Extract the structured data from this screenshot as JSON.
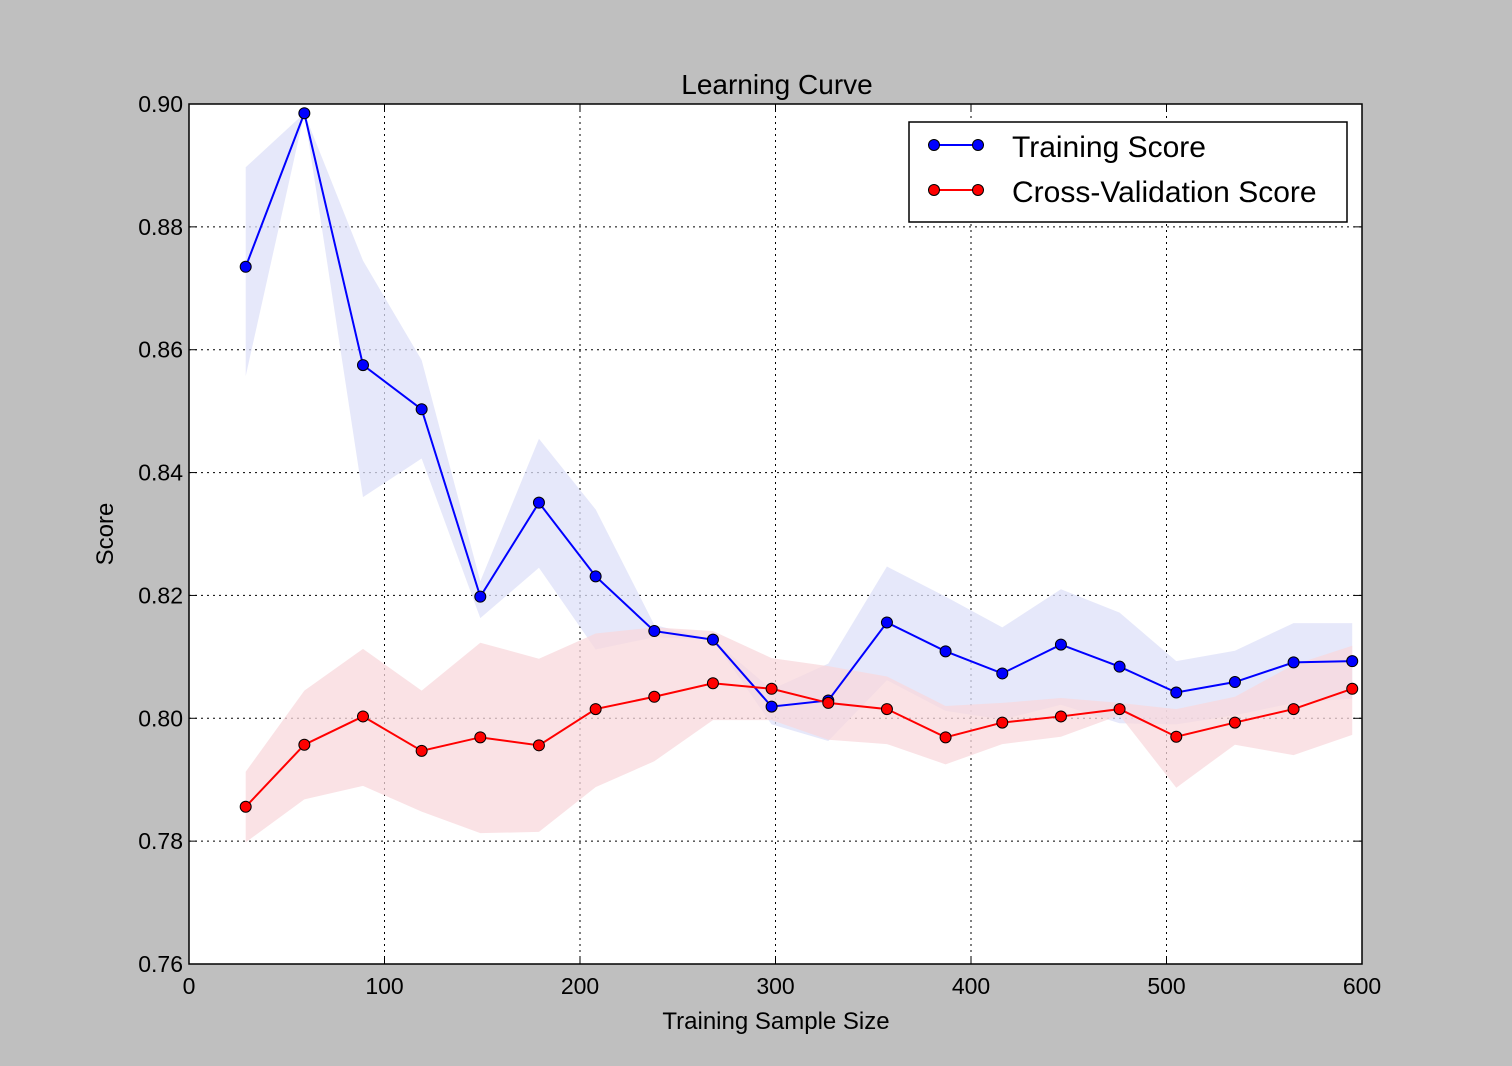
{
  "figure": {
    "background": "#bfbfbf"
  },
  "chart_data": {
    "type": "line",
    "title": "Learning Curve",
    "xlabel": "Training Sample Size",
    "ylabel": "Score",
    "xlim": [
      0,
      600
    ],
    "ylim": [
      0.76,
      0.9
    ],
    "xticks": [
      0,
      100,
      200,
      300,
      400,
      500,
      600
    ],
    "xtick_labels": [
      "0",
      "100",
      "200",
      "300",
      "400",
      "500",
      "600"
    ],
    "yticks": [
      0.76,
      0.78,
      0.8,
      0.82,
      0.84,
      0.86,
      0.88,
      0.9
    ],
    "ytick_labels": [
      "0.76",
      "0.78",
      "0.80",
      "0.82",
      "0.84",
      "0.86",
      "0.88",
      "0.90"
    ],
    "grid": true,
    "legend_position": "top-right",
    "x": [
      29,
      59,
      89,
      119,
      149,
      179,
      208,
      238,
      268,
      298,
      327,
      357,
      387,
      416,
      446,
      476,
      505,
      535,
      565,
      595
    ],
    "series": [
      {
        "name": "Training Score",
        "color": "#0000ff",
        "band_color": "#dde0f8",
        "values": [
          0.8735,
          0.8985,
          0.8575,
          0.8503,
          0.8198,
          0.8351,
          0.8231,
          0.8142,
          0.8128,
          0.8019,
          0.8029,
          0.8156,
          0.8109,
          0.8073,
          0.812,
          0.8084,
          0.8042,
          0.8059,
          0.8091,
          0.8093
        ],
        "band_upper": [
          0.8897,
          0.8985,
          0.8745,
          0.8583,
          0.8223,
          0.8455,
          0.834,
          0.8152,
          0.8128,
          0.8047,
          0.8089,
          0.8247,
          0.8198,
          0.8148,
          0.821,
          0.8172,
          0.8093,
          0.811,
          0.8155,
          0.8155
        ],
        "band_lower": [
          0.8557,
          0.8985,
          0.836,
          0.8423,
          0.8163,
          0.8245,
          0.8112,
          0.8132,
          0.8128,
          0.799,
          0.7963,
          0.8062,
          0.8012,
          0.7998,
          0.8022,
          0.7992,
          0.799,
          0.8005,
          0.8025,
          0.8032
        ]
      },
      {
        "name": "Cross-Validation Score",
        "color": "#ff0000",
        "band_color": "#f8d8dc",
        "values": [
          0.7856,
          0.7957,
          0.8003,
          0.7947,
          0.7969,
          0.7956,
          0.8015,
          0.8035,
          0.8057,
          0.8048,
          0.8025,
          0.8015,
          0.7969,
          0.7993,
          0.8003,
          0.8015,
          0.797,
          0.7993,
          0.8015,
          0.8048
        ]
      }
    ],
    "cv_band_upper": [
      0.7913,
      0.8045,
      0.8113,
      0.8045,
      0.8123,
      0.8097,
      0.8138,
      0.8148,
      0.8142,
      0.8098,
      0.8085,
      0.8068,
      0.802,
      0.8025,
      0.8033,
      0.8025,
      0.8015,
      0.8035,
      0.8087,
      0.8118
    ],
    "cv_band_lower": [
      0.7798,
      0.7868,
      0.789,
      0.7848,
      0.7813,
      0.7815,
      0.7888,
      0.793,
      0.7997,
      0.7997,
      0.7965,
      0.7958,
      0.7925,
      0.7958,
      0.797,
      0.8005,
      0.7887,
      0.7957,
      0.794,
      0.7973
    ]
  }
}
